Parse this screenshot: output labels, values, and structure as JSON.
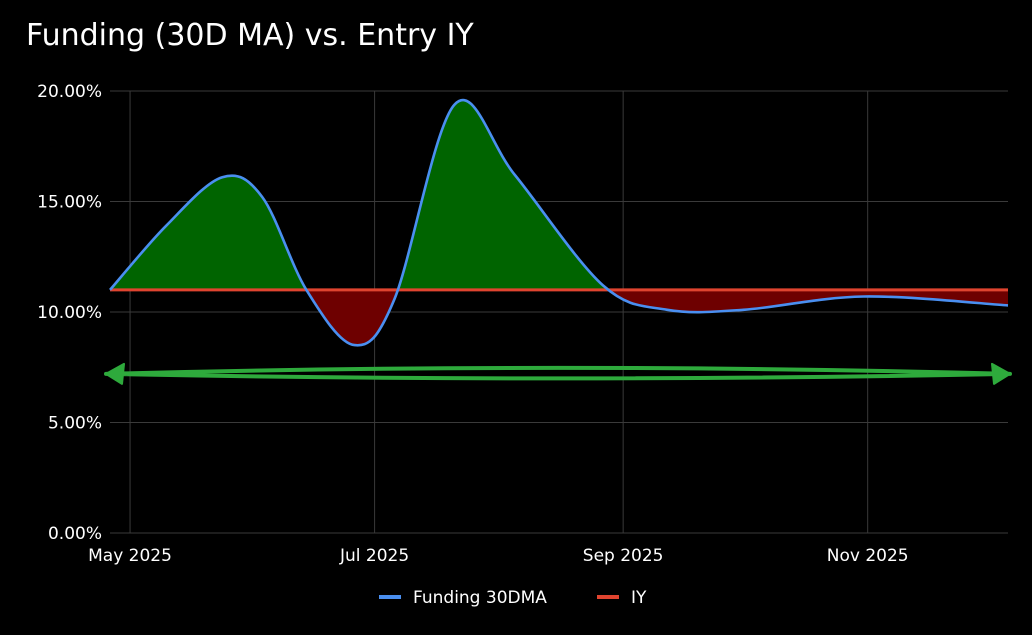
{
  "chart_data": {
    "type": "area",
    "title": "Funding (30D MA) vs. Entry IY",
    "xlabel": "",
    "ylabel": "",
    "x_ticks": [
      {
        "label": "May 2025",
        "date": "2025-05-01"
      },
      {
        "label": "Jul 2025",
        "date": "2025-07-01"
      },
      {
        "label": "Sep 2025",
        "date": "2025-09-01"
      },
      {
        "label": "Nov 2025",
        "date": "2025-11-01"
      }
    ],
    "y_ticks": [
      {
        "label": "0.00%",
        "value": 0
      },
      {
        "label": "5.00%",
        "value": 5
      },
      {
        "label": "10.00%",
        "value": 10
      },
      {
        "label": "15.00%",
        "value": 15
      },
      {
        "label": "20.00%",
        "value": 20
      }
    ],
    "xlim": [
      "2025-04-26",
      "2025-12-06"
    ],
    "ylim": [
      0,
      20
    ],
    "series": [
      {
        "name": "Funding 30DMA",
        "color": "#4a8ff0",
        "points": [
          {
            "date": "2025-04-26",
            "value": 11.0
          },
          {
            "date": "2025-05-10",
            "value": 13.9
          },
          {
            "date": "2025-05-24",
            "value": 16.1
          },
          {
            "date": "2025-06-03",
            "value": 15.2
          },
          {
            "date": "2025-06-14",
            "value": 11.0
          },
          {
            "date": "2025-06-26",
            "value": 8.5
          },
          {
            "date": "2025-07-06",
            "value": 10.6
          },
          {
            "date": "2025-07-21",
            "value": 19.4
          },
          {
            "date": "2025-08-05",
            "value": 16.2
          },
          {
            "date": "2025-08-27",
            "value": 11.2
          },
          {
            "date": "2025-09-12",
            "value": 10.1
          },
          {
            "date": "2025-10-01",
            "value": 10.1
          },
          {
            "date": "2025-10-31",
            "value": 10.7
          },
          {
            "date": "2025-12-06",
            "value": 10.3
          }
        ]
      },
      {
        "name": "IY",
        "color": "#e0442f",
        "points": [
          {
            "date": "2025-04-26",
            "value": 11.0
          },
          {
            "date": "2025-12-06",
            "value": 11.0
          }
        ]
      }
    ],
    "fill_above_color": "#006400",
    "fill_below_color": "#6e0000",
    "grid": true,
    "legend_position": "bottom-center",
    "annotations": [
      {
        "type": "double-arrow",
        "color": "#2eaa3c",
        "from": "2025-04-26",
        "to": "2025-12-06",
        "value": 7.2
      }
    ]
  }
}
